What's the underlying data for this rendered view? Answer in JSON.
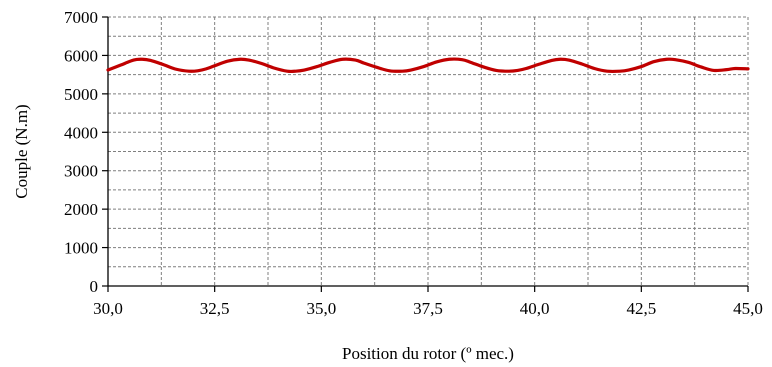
{
  "chart_data": {
    "type": "line",
    "title": "",
    "xlabel": "Position du rotor (º mec.)",
    "ylabel": "Couple (N.m)",
    "xlim": [
      30,
      45
    ],
    "ylim": [
      0,
      7000
    ],
    "x_ticks": [
      30,
      32.5,
      35,
      37.5,
      40,
      42.5,
      45
    ],
    "x_tick_labels": [
      "30,0",
      "32,5",
      "35,0",
      "37,5",
      "40,0",
      "42,5",
      "45,0"
    ],
    "y_ticks": [
      0,
      1000,
      2000,
      3000,
      4000,
      5000,
      6000,
      7000
    ],
    "y_tick_labels": [
      "0",
      "1000",
      "2000",
      "3000",
      "4000",
      "5000",
      "6000",
      "7000"
    ],
    "grid": true,
    "minor_grid": true,
    "legend": "none",
    "series": [
      {
        "color": "#c00000",
        "x": [
          30.0,
          30.3,
          30.6,
          30.8,
          31.0,
          31.3,
          31.6,
          31.9,
          32.1,
          32.3,
          32.5,
          32.8,
          33.1,
          33.3,
          33.6,
          33.9,
          34.2,
          34.4,
          34.6,
          34.9,
          35.2,
          35.5,
          35.8,
          36.0,
          36.3,
          36.6,
          36.9,
          37.1,
          37.4,
          37.7,
          38.0,
          38.3,
          38.5,
          38.8,
          39.1,
          39.4,
          39.6,
          39.8,
          40.1,
          40.4,
          40.6,
          40.8,
          41.1,
          41.4,
          41.7,
          42.0,
          42.2,
          42.5,
          42.8,
          43.1,
          43.3,
          43.6,
          43.9,
          44.2,
          44.5,
          44.7,
          45.0
        ],
        "values": [
          5620,
          5750,
          5880,
          5900,
          5870,
          5760,
          5640,
          5590,
          5600,
          5650,
          5730,
          5850,
          5900,
          5880,
          5790,
          5670,
          5590,
          5590,
          5620,
          5710,
          5820,
          5900,
          5880,
          5800,
          5690,
          5600,
          5590,
          5620,
          5710,
          5830,
          5900,
          5890,
          5820,
          5700,
          5610,
          5590,
          5610,
          5660,
          5770,
          5870,
          5900,
          5880,
          5780,
          5660,
          5590,
          5590,
          5620,
          5710,
          5840,
          5900,
          5890,
          5820,
          5700,
          5610,
          5630,
          5660,
          5650
        ]
      }
    ]
  }
}
